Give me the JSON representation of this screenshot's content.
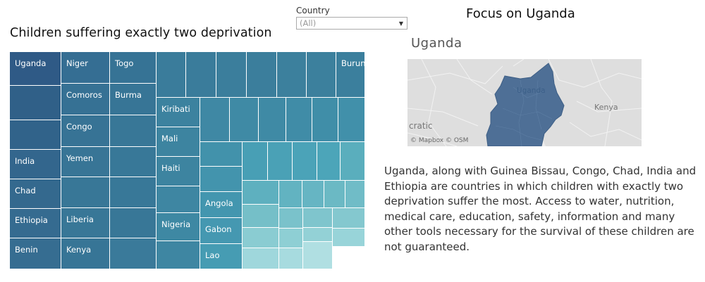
{
  "treemap": {
    "title": "Children suffering exactly two deprivation",
    "cells": [
      {
        "label": "Uganda",
        "color": "#2f5a86"
      },
      {
        "label": "",
        "color": "#306088"
      },
      {
        "label": "",
        "color": "#31638a"
      },
      {
        "label": "India",
        "color": "#33668d"
      },
      {
        "label": "Chad",
        "color": "#34698e"
      },
      {
        "label": "Ethiopia",
        "color": "#356b90"
      },
      {
        "label": "Benin",
        "color": "#366d91"
      },
      {
        "label": "Niger",
        "color": "#356e93"
      },
      {
        "label": "Comoros",
        "color": "#367194"
      },
      {
        "label": "Congo",
        "color": "#377395"
      },
      {
        "label": "Yemen",
        "color": "#387596"
      },
      {
        "label": "",
        "color": "#387797"
      },
      {
        "label": "Liberia",
        "color": "#387797"
      },
      {
        "label": "Kenya",
        "color": "#377596"
      },
      {
        "label": "Togo",
        "color": "#367395"
      },
      {
        "label": "Burma",
        "color": "#377596"
      },
      {
        "label": "",
        "color": "#387797"
      },
      {
        "label": "",
        "color": "#387898"
      },
      {
        "label": "",
        "color": "#387898"
      },
      {
        "label": "",
        "color": "#387797"
      },
      {
        "label": "",
        "color": "#3a7a9a"
      },
      {
        "label": "",
        "color": "#3a7c9b"
      },
      {
        "label": "",
        "color": "#3a7c9b"
      },
      {
        "label": "",
        "color": "#3b7e9c"
      },
      {
        "label": "",
        "color": "#3b7e9c"
      },
      {
        "label": "",
        "color": "#3c809d"
      },
      {
        "label": "",
        "color": "#3c809d"
      },
      {
        "label": "Burundi",
        "color": "#3b7f9d"
      },
      {
        "label": "Kiribati",
        "color": "#3c829f"
      },
      {
        "label": "Mali",
        "color": "#3d84a0"
      },
      {
        "label": "Haiti",
        "color": "#3d84a0"
      },
      {
        "label": "",
        "color": "#3e86a2"
      },
      {
        "label": "Nigeria",
        "color": "#3e88a3"
      },
      {
        "label": "",
        "color": "#3e86a2"
      },
      {
        "label": "",
        "color": "#3f88a4"
      },
      {
        "label": "",
        "color": "#3f8aa5"
      },
      {
        "label": "",
        "color": "#3f8aa5"
      },
      {
        "label": "",
        "color": "#408ca7"
      },
      {
        "label": "",
        "color": "#408ea8"
      },
      {
        "label": "",
        "color": "#4190aa"
      },
      {
        "label": "",
        "color": "#4292ab"
      },
      {
        "label": "",
        "color": "#4394ad"
      },
      {
        "label": "Angola",
        "color": "#4396af"
      },
      {
        "label": "Gabon",
        "color": "#4598b1"
      },
      {
        "label": "Lao",
        "color": "#469cb3"
      },
      {
        "label": "",
        "color": "#489fb5"
      },
      {
        "label": "",
        "color": "#4aa1b6"
      },
      {
        "label": "",
        "color": "#4ba3b8"
      },
      {
        "label": "",
        "color": "#4ca5b9"
      },
      {
        "label": "",
        "color": "#5aaebd"
      },
      {
        "label": "",
        "color": "#5eb0bf"
      },
      {
        "label": "",
        "color": "#62b3c1"
      },
      {
        "label": "",
        "color": "#66b5c3"
      },
      {
        "label": "",
        "color": "#6bb9c4"
      },
      {
        "label": "",
        "color": "#70bcc7"
      },
      {
        "label": "",
        "color": "#75bfc8"
      },
      {
        "label": "",
        "color": "#7ac2cb"
      },
      {
        "label": "",
        "color": "#7fc5cd"
      },
      {
        "label": "",
        "color": "#84c8cf"
      },
      {
        "label": "",
        "color": "#8accd2"
      },
      {
        "label": "",
        "color": "#8ecfd4"
      },
      {
        "label": "",
        "color": "#93d1d6"
      },
      {
        "label": "",
        "color": "#98d4d9"
      },
      {
        "label": "",
        "color": "#9fd7dc"
      },
      {
        "label": "",
        "color": "#a7dbdf"
      },
      {
        "label": "",
        "color": "#b0dfe2"
      }
    ]
  },
  "filter": {
    "label": "Country",
    "value": "(All)"
  },
  "focus": {
    "title": "Focus on Uganda",
    "map_title": "Uganda",
    "map_labels": {
      "uganda": "Uganda",
      "kenya": "Kenya",
      "cratic": "cratic"
    },
    "attribution": "© Mapbox © OSM",
    "highlight_color": "#4e6f96"
  },
  "description": "Uganda, along with Guinea Bissau, Congo, Chad, India and Ethiopia are countries in which children with exactly two deprivation suffer the most. Access to water, nutrition, medical care, education, safety, information and many other tools necessary for the survival of these children are not guaranteed."
}
